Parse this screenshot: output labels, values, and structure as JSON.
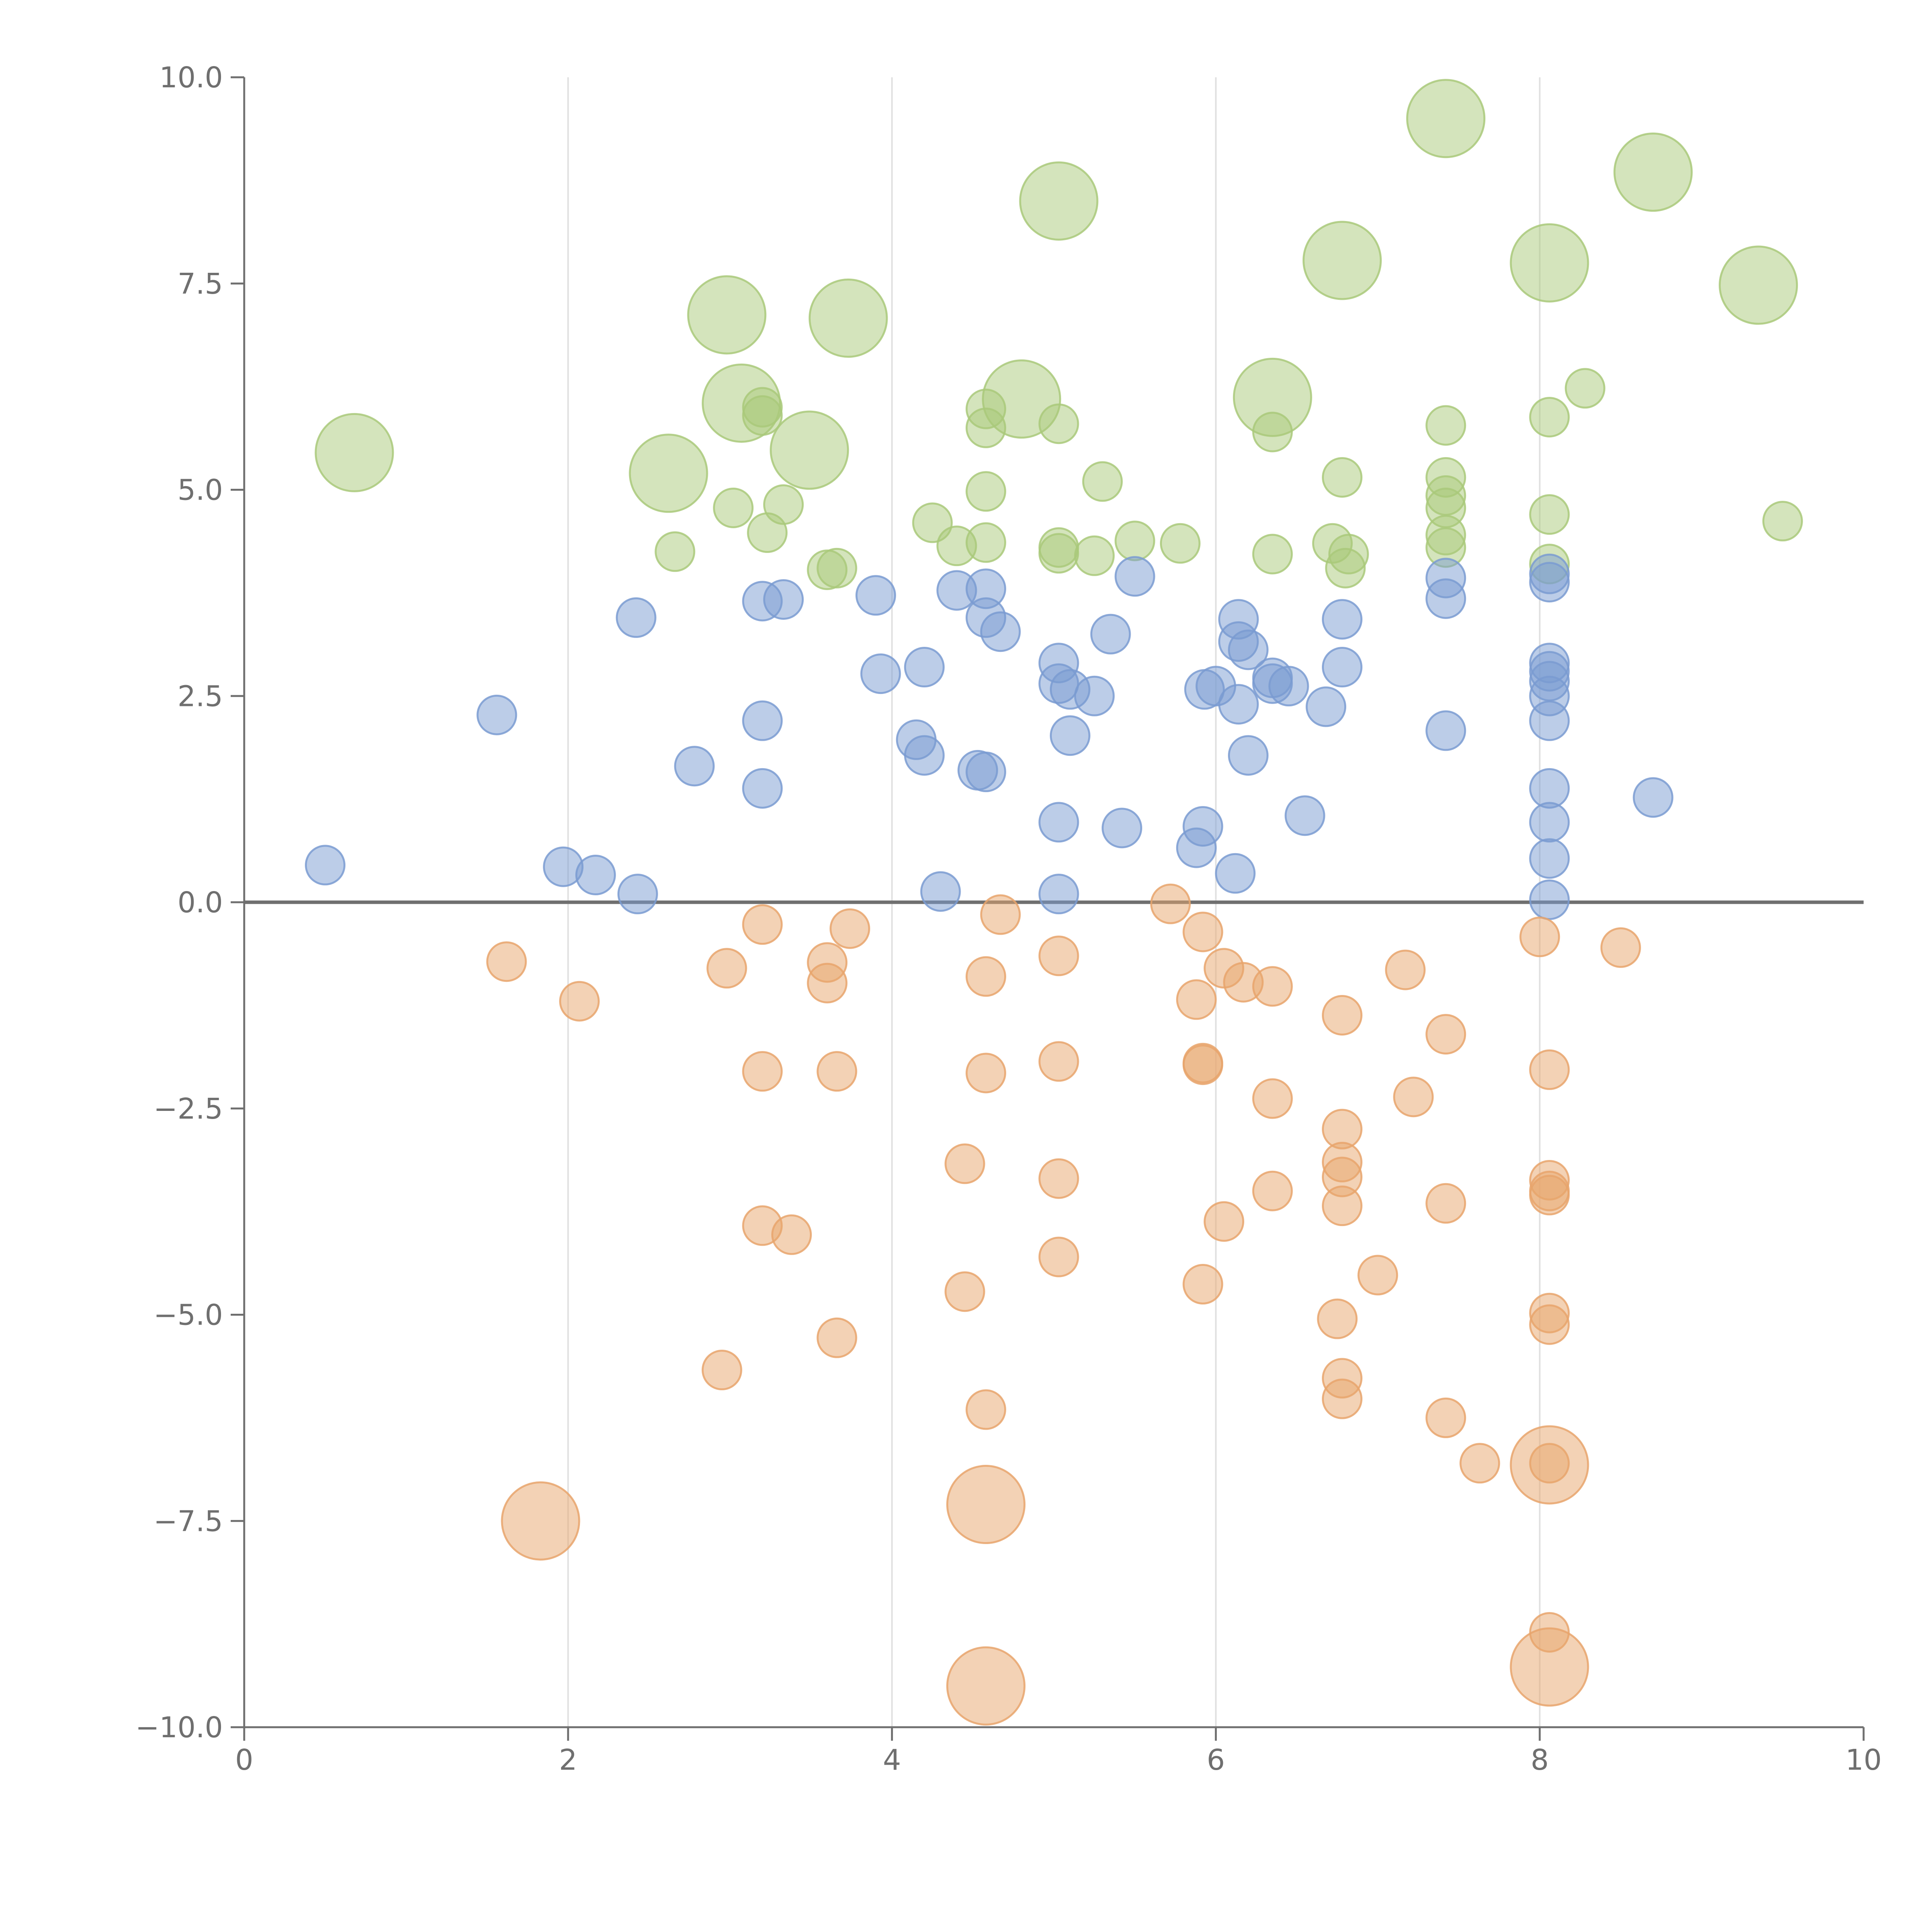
{
  "chart_data": {
    "type": "scatter",
    "title": "",
    "xlabel": "",
    "ylabel": "",
    "xlim": [
      0,
      10
    ],
    "ylim": [
      -10,
      10
    ],
    "x_ticks": [
      0,
      2,
      4,
      6,
      8,
      10
    ],
    "x_tick_labels": [
      "0",
      "2",
      "4",
      "6",
      "8",
      "10"
    ],
    "y_ticks": [
      -10,
      -7.5,
      -5,
      -2.5,
      0,
      2.5,
      5,
      7.5,
      10
    ],
    "y_tick_labels": [
      "−10.0",
      "−7.5",
      "−5.0",
      "−2.5",
      "0.0",
      "2.5",
      "5.0",
      "7.5",
      "10.0"
    ],
    "grid": "vertical lines at x ticks",
    "zero_line": true,
    "legend": "none",
    "colors": {
      "green": "#a9c97a",
      "blue": "#7a9bd1",
      "orange": "#e8a56c",
      "axis": "#6f6f6f",
      "grid": "#e0e0e0"
    },
    "series": [
      {
        "color": "green",
        "points": [
          [
            7.42,
            9.5,
            2
          ],
          [
            8.7,
            8.85,
            2
          ],
          [
            5.03,
            8.5,
            2
          ],
          [
            6.78,
            7.78,
            2
          ],
          [
            8.06,
            7.75,
            2
          ],
          [
            9.35,
            7.48,
            2
          ],
          [
            2.98,
            7.12,
            2
          ],
          [
            3.73,
            7.08,
            2
          ],
          [
            3.07,
            6.05,
            2
          ],
          [
            4.8,
            6.1,
            2
          ],
          [
            6.35,
            6.12,
            2
          ],
          [
            3.49,
            5.48,
            2
          ],
          [
            2.62,
            5.2,
            2
          ],
          [
            0.68,
            5.45,
            2
          ],
          [
            3.2,
            6.0,
            1
          ],
          [
            3.2,
            5.9,
            1
          ],
          [
            4.58,
            5.98,
            1
          ],
          [
            4.58,
            5.75,
            1
          ],
          [
            5.03,
            5.8,
            1
          ],
          [
            6.35,
            5.7,
            1
          ],
          [
            7.42,
            5.78,
            1
          ],
          [
            8.06,
            5.88,
            1
          ],
          [
            8.28,
            6.23,
            1
          ],
          [
            5.3,
            5.1,
            1
          ],
          [
            6.78,
            5.15,
            1
          ],
          [
            7.42,
            5.15,
            1
          ],
          [
            4.58,
            4.98,
            1
          ],
          [
            7.42,
            4.93,
            1
          ],
          [
            3.02,
            4.78,
            1
          ],
          [
            3.33,
            4.82,
            1
          ],
          [
            3.23,
            4.48,
            1
          ],
          [
            4.25,
            4.6,
            1
          ],
          [
            7.42,
            4.78,
            1
          ],
          [
            8.06,
            4.7,
            1
          ],
          [
            9.5,
            4.62,
            1
          ],
          [
            4.4,
            4.32,
            1
          ],
          [
            4.58,
            4.36,
            1
          ],
          [
            5.03,
            4.3,
            1
          ],
          [
            5.03,
            4.23,
            1
          ],
          [
            5.25,
            4.2,
            1
          ],
          [
            5.5,
            4.38,
            1
          ],
          [
            5.78,
            4.35,
            1
          ],
          [
            6.35,
            4.22,
            1
          ],
          [
            6.72,
            4.35,
            1
          ],
          [
            6.82,
            4.22,
            1
          ],
          [
            6.8,
            4.05,
            1
          ],
          [
            7.42,
            4.45,
            1
          ],
          [
            7.42,
            4.3,
            1
          ],
          [
            8.06,
            4.1,
            1
          ],
          [
            2.66,
            4.25,
            1
          ],
          [
            3.6,
            4.03,
            1
          ],
          [
            3.66,
            4.05,
            1
          ]
        ]
      },
      {
        "color": "blue",
        "points": [
          [
            5.5,
            3.95,
            1
          ],
          [
            7.42,
            3.93,
            1
          ],
          [
            8.06,
            3.98,
            1
          ],
          [
            8.06,
            3.88,
            1
          ],
          [
            3.9,
            3.72,
            1
          ],
          [
            4.4,
            3.78,
            1
          ],
          [
            4.58,
            3.8,
            1
          ],
          [
            7.42,
            3.68,
            1
          ],
          [
            3.2,
            3.65,
            1
          ],
          [
            3.33,
            3.67,
            1
          ],
          [
            2.42,
            3.45,
            1
          ],
          [
            4.58,
            3.45,
            1
          ],
          [
            4.67,
            3.28,
            1
          ],
          [
            5.35,
            3.25,
            1
          ],
          [
            6.14,
            3.43,
            1
          ],
          [
            6.78,
            3.43,
            1
          ],
          [
            6.14,
            3.16,
            1
          ],
          [
            6.2,
            3.06,
            1
          ],
          [
            5.03,
            2.9,
            1
          ],
          [
            6.78,
            2.85,
            1
          ],
          [
            8.06,
            2.9,
            1
          ],
          [
            8.06,
            2.8,
            1
          ],
          [
            3.93,
            2.77,
            1
          ],
          [
            4.2,
            2.85,
            1
          ],
          [
            5.03,
            2.65,
            1
          ],
          [
            5.1,
            2.58,
            1
          ],
          [
            5.25,
            2.5,
            1
          ],
          [
            5.93,
            2.58,
            1
          ],
          [
            6.0,
            2.62,
            1
          ],
          [
            6.35,
            2.72,
            1
          ],
          [
            6.35,
            2.65,
            1
          ],
          [
            6.45,
            2.62,
            1
          ],
          [
            8.06,
            2.68,
            1
          ],
          [
            8.06,
            2.5,
            1
          ],
          [
            6.14,
            2.4,
            1
          ],
          [
            6.68,
            2.37,
            1
          ],
          [
            1.56,
            2.27,
            1
          ],
          [
            3.2,
            2.2,
            1
          ],
          [
            7.42,
            2.08,
            1
          ],
          [
            8.06,
            2.2,
            1
          ],
          [
            5.1,
            2.02,
            1
          ],
          [
            4.15,
            1.97,
            1
          ],
          [
            4.2,
            1.78,
            1
          ],
          [
            6.2,
            1.78,
            1
          ],
          [
            2.78,
            1.65,
            1
          ],
          [
            4.53,
            1.6,
            1
          ],
          [
            4.58,
            1.58,
            1
          ],
          [
            3.2,
            1.38,
            1
          ],
          [
            8.06,
            1.38,
            1
          ],
          [
            8.7,
            1.27,
            1
          ],
          [
            6.55,
            1.05,
            1
          ],
          [
            5.03,
            0.97,
            1
          ],
          [
            5.42,
            0.9,
            1
          ],
          [
            5.92,
            0.92,
            1
          ],
          [
            8.06,
            0.97,
            1
          ],
          [
            5.88,
            0.66,
            1
          ],
          [
            8.06,
            0.53,
            1
          ],
          [
            0.5,
            0.45,
            1
          ],
          [
            1.97,
            0.43,
            1
          ],
          [
            2.17,
            0.33,
            1
          ],
          [
            6.12,
            0.35,
            1
          ],
          [
            2.43,
            0.1,
            1
          ],
          [
            4.3,
            0.13,
            1
          ],
          [
            5.03,
            0.1,
            1
          ],
          [
            8.06,
            0.03,
            1
          ]
        ]
      },
      {
        "color": "orange",
        "points": [
          [
            5.72,
            -0.02,
            1
          ],
          [
            4.67,
            -0.15,
            1
          ],
          [
            3.2,
            -0.27,
            1
          ],
          [
            3.74,
            -0.32,
            1
          ],
          [
            5.92,
            -0.36,
            1
          ],
          [
            8.0,
            -0.42,
            1
          ],
          [
            8.5,
            -0.55,
            1
          ],
          [
            5.03,
            -0.65,
            1
          ],
          [
            1.62,
            -0.72,
            1
          ],
          [
            3.6,
            -0.73,
            1
          ],
          [
            2.98,
            -0.8,
            1
          ],
          [
            6.05,
            -0.8,
            1
          ],
          [
            7.17,
            -0.82,
            1
          ],
          [
            4.58,
            -0.9,
            1
          ],
          [
            3.6,
            -0.98,
            1
          ],
          [
            6.17,
            -0.97,
            1
          ],
          [
            6.35,
            -1.02,
            1
          ],
          [
            2.07,
            -1.2,
            1
          ],
          [
            5.88,
            -1.18,
            1
          ],
          [
            6.78,
            -1.37,
            1
          ],
          [
            7.42,
            -1.6,
            1
          ],
          [
            5.03,
            -1.93,
            1
          ],
          [
            5.92,
            -1.95,
            1
          ],
          [
            5.92,
            -1.97,
            1
          ],
          [
            3.2,
            -2.05,
            1
          ],
          [
            3.66,
            -2.05,
            1
          ],
          [
            8.06,
            -2.03,
            1
          ],
          [
            4.58,
            -2.07,
            1
          ],
          [
            6.35,
            -2.38,
            1
          ],
          [
            7.22,
            -2.36,
            1
          ],
          [
            6.78,
            -2.75,
            1
          ],
          [
            4.45,
            -3.17,
            1
          ],
          [
            6.78,
            -3.15,
            1
          ],
          [
            5.03,
            -3.35,
            1
          ],
          [
            6.78,
            -3.33,
            1
          ],
          [
            8.06,
            -3.37,
            1
          ],
          [
            8.06,
            -3.5,
            1
          ],
          [
            8.06,
            -3.55,
            1
          ],
          [
            6.35,
            -3.5,
            1
          ],
          [
            6.78,
            -3.68,
            1
          ],
          [
            7.42,
            -3.65,
            1
          ],
          [
            6.05,
            -3.87,
            1
          ],
          [
            3.2,
            -3.92,
            1
          ],
          [
            3.38,
            -4.03,
            1
          ],
          [
            5.03,
            -4.3,
            1
          ],
          [
            7.0,
            -4.52,
            1
          ],
          [
            5.92,
            -4.63,
            1
          ],
          [
            4.45,
            -4.72,
            1
          ],
          [
            8.06,
            -4.98,
            1
          ],
          [
            6.75,
            -5.05,
            1
          ],
          [
            8.06,
            -5.12,
            1
          ],
          [
            3.66,
            -5.28,
            1
          ],
          [
            2.95,
            -5.67,
            1
          ],
          [
            6.78,
            -5.77,
            1
          ],
          [
            6.78,
            -6.02,
            1
          ],
          [
            4.58,
            -6.15,
            1
          ],
          [
            7.42,
            -6.25,
            1
          ],
          [
            7.63,
            -6.8,
            1
          ],
          [
            8.06,
            -6.8,
            1
          ],
          [
            8.06,
            -8.85,
            1
          ],
          [
            8.06,
            -6.82,
            2
          ],
          [
            4.58,
            -7.3,
            2
          ],
          [
            1.83,
            -7.5,
            2
          ],
          [
            8.06,
            -9.27,
            2
          ],
          [
            4.58,
            -9.5,
            2
          ]
        ]
      }
    ]
  }
}
